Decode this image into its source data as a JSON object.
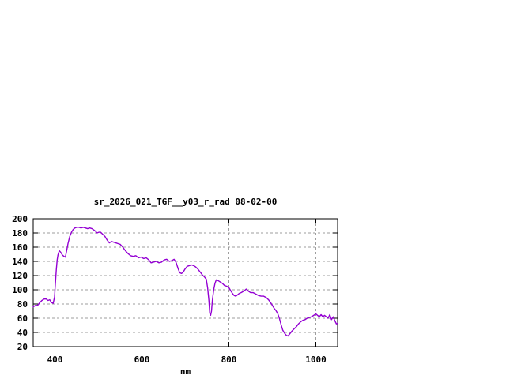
{
  "window": {
    "background": "#ffffff"
  },
  "chart_data": {
    "type": "line",
    "title": "sr_2026_021_TGF__y03_r_rad 08-02-00",
    "xlabel": "nm",
    "ylabel": "",
    "xlim": [
      350,
      1050
    ],
    "ylim": [
      20,
      200
    ],
    "x_ticks": [
      400,
      600,
      800,
      1000
    ],
    "y_ticks": [
      20,
      40,
      60,
      80,
      100,
      120,
      140,
      160,
      180,
      200
    ],
    "grid": true,
    "grid_style": "dashed",
    "legend_position": "none",
    "line_color": "#9400d3",
    "grid_color": "#9e9e9e",
    "axis_color": "#000000",
    "series": [
      {
        "points": [
          [
            350,
            76
          ],
          [
            355,
            78
          ],
          [
            360,
            78
          ],
          [
            365,
            82
          ],
          [
            370,
            85
          ],
          [
            375,
            87
          ],
          [
            380,
            87
          ],
          [
            384,
            85
          ],
          [
            388,
            86
          ],
          [
            392,
            82
          ],
          [
            396,
            81
          ],
          [
            399,
            90
          ],
          [
            401,
            108
          ],
          [
            403,
            128
          ],
          [
            405,
            142
          ],
          [
            407,
            149
          ],
          [
            410,
            155
          ],
          [
            413,
            153
          ],
          [
            417,
            149
          ],
          [
            421,
            147
          ],
          [
            424,
            146
          ],
          [
            427,
            155
          ],
          [
            430,
            165
          ],
          [
            434,
            175
          ],
          [
            438,
            181
          ],
          [
            442,
            185
          ],
          [
            446,
            187
          ],
          [
            450,
            188
          ],
          [
            455,
            188
          ],
          [
            460,
            187
          ],
          [
            465,
            188
          ],
          [
            470,
            187
          ],
          [
            475,
            186
          ],
          [
            480,
            187
          ],
          [
            485,
            186
          ],
          [
            490,
            184
          ],
          [
            494,
            182
          ],
          [
            497,
            180
          ],
          [
            501,
            181
          ],
          [
            505,
            181
          ],
          [
            510,
            178
          ],
          [
            515,
            175
          ],
          [
            520,
            170
          ],
          [
            525,
            166
          ],
          [
            530,
            168
          ],
          [
            535,
            167
          ],
          [
            540,
            166
          ],
          [
            545,
            165
          ],
          [
            550,
            164
          ],
          [
            556,
            160
          ],
          [
            562,
            155
          ],
          [
            568,
            151
          ],
          [
            574,
            148
          ],
          [
            580,
            147
          ],
          [
            586,
            148
          ],
          [
            592,
            145
          ],
          [
            598,
            146
          ],
          [
            604,
            144
          ],
          [
            610,
            145
          ],
          [
            616,
            142
          ],
          [
            621,
            138
          ],
          [
            627,
            139
          ],
          [
            633,
            140
          ],
          [
            639,
            138
          ],
          [
            645,
            139
          ],
          [
            651,
            142
          ],
          [
            657,
            143
          ],
          [
            663,
            140
          ],
          [
            669,
            141
          ],
          [
            674,
            143
          ],
          [
            679,
            138
          ],
          [
            683,
            130
          ],
          [
            687,
            124
          ],
          [
            691,
            123
          ],
          [
            695,
            125
          ],
          [
            699,
            129
          ],
          [
            704,
            133
          ],
          [
            709,
            134
          ],
          [
            714,
            135
          ],
          [
            719,
            134
          ],
          [
            724,
            132
          ],
          [
            729,
            129
          ],
          [
            734,
            125
          ],
          [
            739,
            121
          ],
          [
            744,
            118
          ],
          [
            748,
            115
          ],
          [
            751,
            103
          ],
          [
            754,
            85
          ],
          [
            756,
            67
          ],
          [
            758,
            64
          ],
          [
            760,
            70
          ],
          [
            762,
            85
          ],
          [
            765,
            100
          ],
          [
            768,
            109
          ],
          [
            771,
            114
          ],
          [
            775,
            113
          ],
          [
            780,
            111
          ],
          [
            785,
            109
          ],
          [
            790,
            106
          ],
          [
            795,
            105
          ],
          [
            800,
            103
          ],
          [
            804,
            99
          ],
          [
            808,
            95
          ],
          [
            812,
            92
          ],
          [
            816,
            91
          ],
          [
            820,
            93
          ],
          [
            824,
            95
          ],
          [
            828,
            96
          ],
          [
            834,
            98
          ],
          [
            840,
            101
          ],
          [
            845,
            98
          ],
          [
            850,
            96
          ],
          [
            856,
            96
          ],
          [
            862,
            94
          ],
          [
            868,
            92
          ],
          [
            874,
            91
          ],
          [
            880,
            91
          ],
          [
            886,
            89
          ],
          [
            891,
            86
          ],
          [
            896,
            82
          ],
          [
            900,
            78
          ],
          [
            904,
            74
          ],
          [
            908,
            71
          ],
          [
            912,
            67
          ],
          [
            916,
            60
          ],
          [
            920,
            51
          ],
          [
            924,
            43
          ],
          [
            928,
            39
          ],
          [
            932,
            36
          ],
          [
            936,
            35
          ],
          [
            940,
            38
          ],
          [
            945,
            42
          ],
          [
            950,
            45
          ],
          [
            955,
            48
          ],
          [
            960,
            52
          ],
          [
            965,
            55
          ],
          [
            970,
            57
          ],
          [
            975,
            58
          ],
          [
            980,
            60
          ],
          [
            985,
            61
          ],
          [
            990,
            62
          ],
          [
            995,
            64
          ],
          [
            1000,
            66
          ],
          [
            1004,
            64
          ],
          [
            1008,
            62
          ],
          [
            1012,
            65
          ],
          [
            1016,
            62
          ],
          [
            1020,
            64
          ],
          [
            1024,
            62
          ],
          [
            1028,
            60
          ],
          [
            1032,
            65
          ],
          [
            1036,
            58
          ],
          [
            1040,
            62
          ],
          [
            1044,
            56
          ],
          [
            1047,
            52
          ],
          [
            1050,
            53
          ]
        ]
      }
    ]
  }
}
